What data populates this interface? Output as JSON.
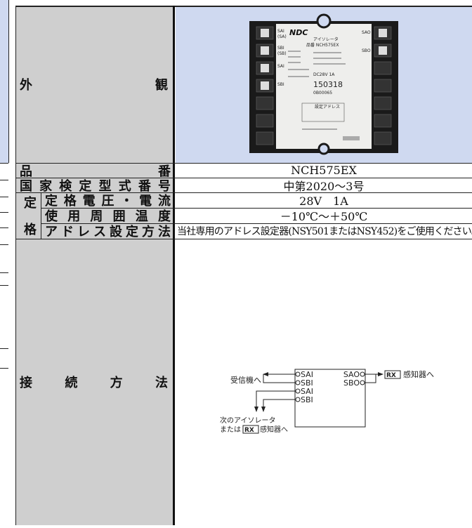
{
  "table": {
    "rows": [
      {
        "label": "外観",
        "image_text": [
          "NDC",
          "SAI",
          "(SA)",
          "SBI",
          "(SB)",
          "SAI",
          "SBI",
          "SAO",
          "SBO",
          "アイソレータ",
          "品番 NCH575EX",
          "DC28V 1A",
          "150318",
          "0B00065",
          "設定アドレス"
        ]
      },
      {
        "label": "品番",
        "value": "NCH575EX"
      },
      {
        "label": "国家検定型式番号",
        "value": "中第2020～3号"
      },
      {
        "group": "定格",
        "items": [
          {
            "label": "定格電圧・電流",
            "value": "28V　1A"
          },
          {
            "label": "使用周囲温度",
            "value": "－10℃～＋50℃"
          },
          {
            "label": "アドレス設定方法",
            "value": "当社専用のアドレス設定器(NSY501またはNSY452)をご使用ください。"
          }
        ]
      },
      {
        "label": "接続方法",
        "diagram": {
          "terminals_in": [
            "SAI",
            "SBI",
            "SAI",
            "SBI"
          ],
          "terminals_out": [
            "SAO",
            "SBO"
          ],
          "to_receiver": "受信機へ",
          "to_detector": "感知器へ",
          "next_line1": "次のアイソレータ",
          "next_line2": "または",
          "next_line3": "感知器へ",
          "rx": "RX"
        }
      }
    ]
  }
}
